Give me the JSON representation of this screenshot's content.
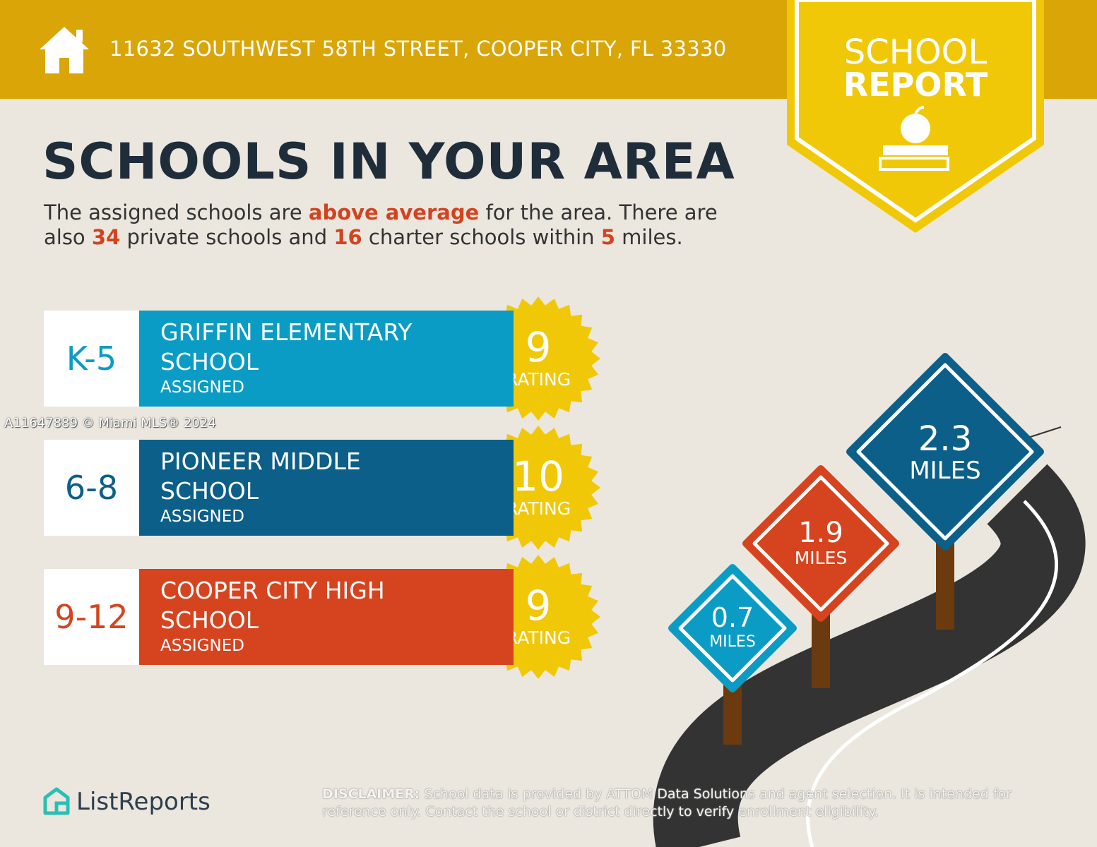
{
  "header": {
    "address": "11632 SOUTHWEST 58TH STREET, COOPER CITY, FL 33330"
  },
  "badge": {
    "line1": "SCHOOL",
    "line2": "REPORT"
  },
  "heading": "SCHOOLS IN YOUR AREA",
  "intro": [
    {
      "text": "The assigned schools are ",
      "highlight": false
    },
    {
      "text": "above average",
      "highlight": true
    },
    {
      "text": " for the area. There are also ",
      "highlight": false
    },
    {
      "text": "34",
      "highlight": true
    },
    {
      "text": " private schools and ",
      "highlight": false
    },
    {
      "text": "16",
      "highlight": true
    },
    {
      "text": " charter schools within ",
      "highlight": false
    },
    {
      "text": "5",
      "highlight": true
    },
    {
      "text": " miles.",
      "highlight": false
    }
  ],
  "schools": [
    {
      "grades": "K-5",
      "name_lines": [
        "GRIFFIN ELEMENTARY",
        "SCHOOL"
      ],
      "status": "ASSIGNED",
      "rating": "9",
      "rating_label": "RATING",
      "color": "#0a9cc4"
    },
    {
      "grades": "6-8",
      "name_lines": [
        "PIONEER MIDDLE",
        "SCHOOL"
      ],
      "status": "ASSIGNED",
      "rating": "10",
      "rating_label": "RATING",
      "color": "#0b5f88"
    },
    {
      "grades": "9-12",
      "name_lines": [
        "COOPER CITY HIGH",
        "SCHOOL"
      ],
      "status": "ASSIGNED",
      "rating": "9",
      "rating_label": "RATING",
      "color": "#d5441f"
    }
  ],
  "signs": [
    {
      "distance": "0.7",
      "unit": "MILES",
      "color": "#0a9cc4"
    },
    {
      "distance": "1.9",
      "unit": "MILES",
      "color": "#d5441f"
    },
    {
      "distance": "2.3",
      "unit": "MILES",
      "color": "#0b5f88"
    }
  ],
  "watermark": "A11647889 © Miami MLS® 2024",
  "logo": "ListReports",
  "disclaimer": {
    "label": "DISCLAIMER:",
    "text": " School data is provided by ATTOM Data Solutions and agent selection. It is intended for reference only. Contact the school or district directly to verify enrollment eligibility."
  }
}
